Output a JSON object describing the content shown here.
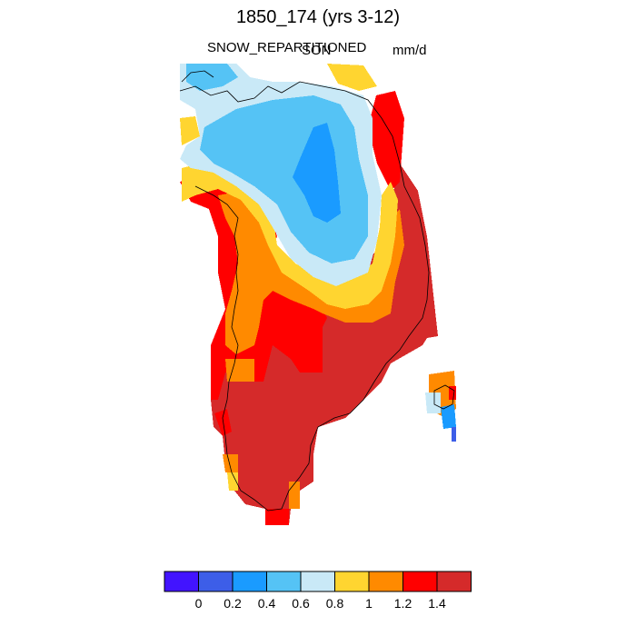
{
  "title": "1850_174 (yrs 3-12)",
  "left_label": "SNOW_REPARTITIONED",
  "center_label": "SON",
  "right_label": "mm/d",
  "colorbar": {
    "colors": [
      "#4214ff",
      "#3d5ee8",
      "#1a9bff",
      "#55c3f5",
      "#c9e9f7",
      "#ffd530",
      "#ff8a00",
      "#ff0000",
      "#d52a2a"
    ],
    "tick_labels": [
      "0",
      "0.2",
      "0.4",
      "0.6",
      "0.8",
      "1",
      "1.2",
      "1.4"
    ]
  }
}
